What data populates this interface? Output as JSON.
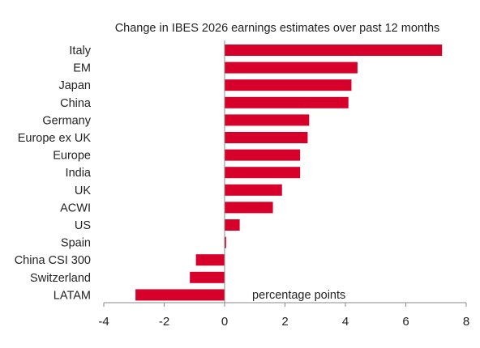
{
  "chart_data": {
    "type": "bar",
    "orientation": "horizontal",
    "title": "Change in IBES 2026 earnings estimates over past 12 months",
    "annotation": "percentage points",
    "xlim": [
      -4,
      8
    ],
    "xticks": [
      "-4",
      "-2",
      "0",
      "2",
      "4",
      "6",
      "8"
    ],
    "grid": false,
    "bar_color": "#d7002a",
    "categories": [
      "Italy",
      "EM",
      "Japan",
      "China",
      "Germany",
      "Europe ex UK",
      "Europe",
      "India",
      "UK",
      "ACWI",
      "US",
      "Spain",
      "China CSI 300",
      "Switzerland",
      "LATAM"
    ],
    "values": [
      7.2,
      4.4,
      4.2,
      4.1,
      2.8,
      2.75,
      2.5,
      2.5,
      1.9,
      1.6,
      0.5,
      0.05,
      -0.95,
      -1.15,
      -2.95
    ]
  }
}
